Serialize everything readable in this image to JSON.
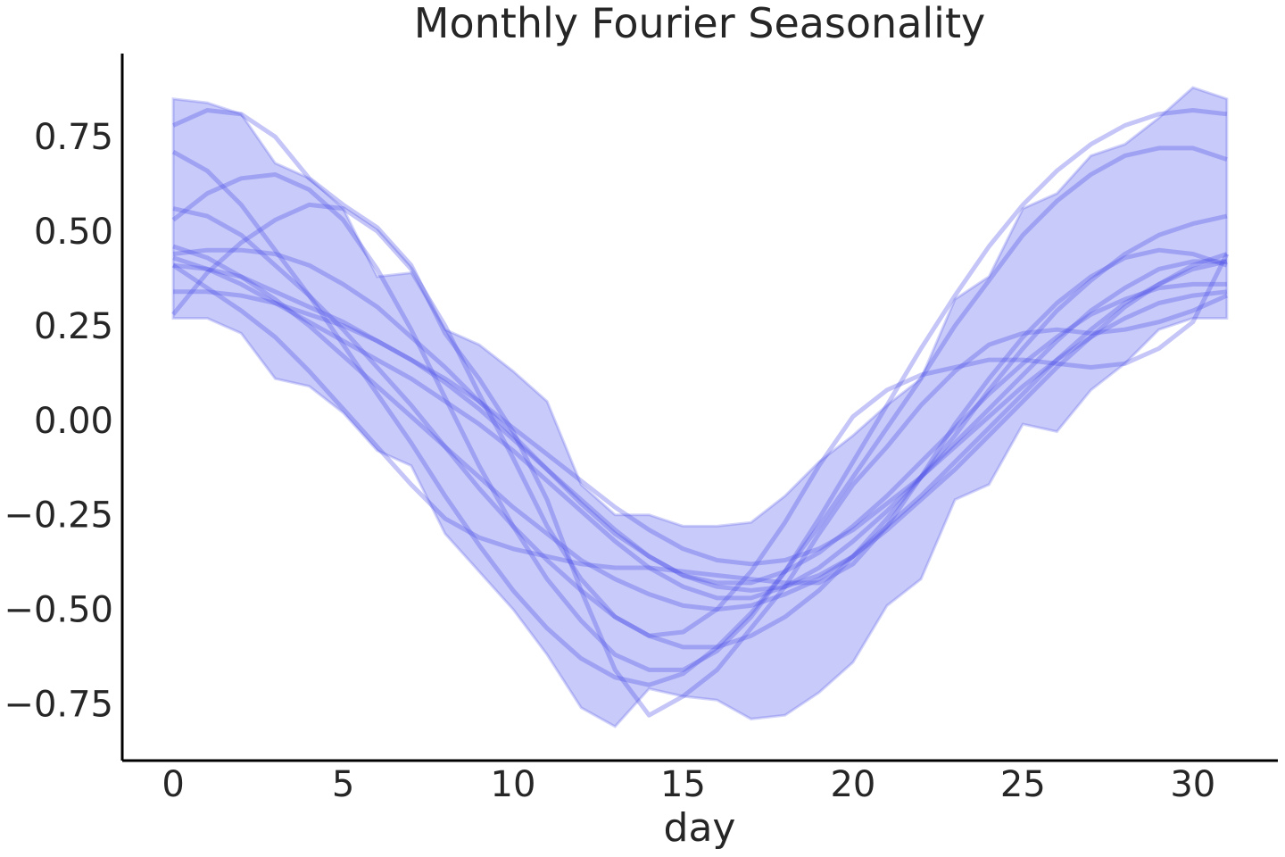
{
  "chart_data": {
    "type": "line",
    "title": "Monthly Fourier Seasonality",
    "xlabel": "day",
    "ylabel": "",
    "xlim": [
      -1.5,
      32.5
    ],
    "ylim": [
      -0.9,
      0.97
    ],
    "x_ticks": [
      0,
      5,
      10,
      15,
      20,
      25,
      30
    ],
    "y_ticks": [
      0.75,
      0.5,
      0.25,
      0.0,
      -0.25,
      -0.5,
      -0.75
    ],
    "y_tick_labels": [
      "0.75",
      "0.50",
      "0.25",
      "0.00",
      "−0.25",
      "−0.50",
      "−0.75"
    ],
    "grid": false,
    "legend": "none",
    "colors": {
      "line": "#4b4fe6",
      "band": "#b9bbf7",
      "axis": "#000000",
      "text": "#262626"
    },
    "x": [
      0,
      1,
      2,
      3,
      4,
      5,
      6,
      7,
      8,
      9,
      10,
      11,
      12,
      13,
      14,
      15,
      16,
      17,
      18,
      19,
      20,
      21,
      22,
      23,
      24,
      25,
      26,
      27,
      28,
      29,
      30,
      31
    ],
    "band": {
      "upper": [
        0.85,
        0.84,
        0.81,
        0.68,
        0.64,
        0.56,
        0.38,
        0.39,
        0.24,
        0.2,
        0.13,
        0.05,
        -0.17,
        -0.25,
        -0.25,
        -0.28,
        -0.28,
        -0.27,
        -0.2,
        -0.11,
        -0.04,
        0.04,
        0.11,
        0.32,
        0.38,
        0.56,
        0.6,
        0.7,
        0.73,
        0.8,
        0.88,
        0.85
      ],
      "lower": [
        0.27,
        0.27,
        0.23,
        0.11,
        0.09,
        0.02,
        -0.08,
        -0.12,
        -0.3,
        -0.4,
        -0.5,
        -0.62,
        -0.76,
        -0.81,
        -0.71,
        -0.73,
        -0.74,
        -0.79,
        -0.78,
        -0.72,
        -0.64,
        -0.49,
        -0.42,
        -0.21,
        -0.17,
        -0.01,
        -0.03,
        0.08,
        0.15,
        0.24,
        0.27,
        0.27
      ]
    },
    "series": [
      {
        "values": [
          0.78,
          0.82,
          0.81,
          0.75,
          0.64,
          0.57,
          0.51,
          0.41,
          0.23,
          0.11,
          -0.03,
          -0.21,
          -0.45,
          -0.66,
          -0.78,
          -0.73,
          -0.66,
          -0.55,
          -0.44,
          -0.3,
          -0.17,
          -0.07,
          0.04,
          0.13,
          0.2,
          0.23,
          0.24,
          0.23,
          0.24,
          0.26,
          0.29,
          0.33
        ]
      },
      {
        "values": [
          0.71,
          0.66,
          0.57,
          0.45,
          0.33,
          0.2,
          0.07,
          -0.06,
          -0.2,
          -0.33,
          -0.45,
          -0.55,
          -0.63,
          -0.68,
          -0.7,
          -0.67,
          -0.6,
          -0.51,
          -0.4,
          -0.28,
          -0.15,
          -0.02,
          0.11,
          0.25,
          0.37,
          0.49,
          0.58,
          0.65,
          0.7,
          0.72,
          0.72,
          0.69
        ]
      },
      {
        "values": [
          0.56,
          0.54,
          0.49,
          0.41,
          0.33,
          0.24,
          0.14,
          0.04,
          -0.07,
          -0.18,
          -0.28,
          -0.37,
          -0.45,
          -0.52,
          -0.57,
          -0.6,
          -0.6,
          -0.57,
          -0.52,
          -0.45,
          -0.36,
          -0.26,
          -0.15,
          -0.04,
          0.08,
          0.19,
          0.29,
          0.37,
          0.44,
          0.49,
          0.52,
          0.54
        ]
      },
      {
        "values": [
          0.53,
          0.6,
          0.64,
          0.65,
          0.61,
          0.53,
          0.4,
          0.24,
          0.06,
          -0.12,
          -0.28,
          -0.42,
          -0.53,
          -0.62,
          -0.66,
          -0.66,
          -0.61,
          -0.52,
          -0.4,
          -0.26,
          -0.11,
          0.04,
          0.19,
          0.33,
          0.46,
          0.57,
          0.66,
          0.73,
          0.78,
          0.81,
          0.82,
          0.81
        ]
      },
      {
        "values": [
          0.46,
          0.43,
          0.38,
          0.32,
          0.25,
          0.17,
          0.09,
          0.01,
          -0.07,
          -0.15,
          -0.23,
          -0.3,
          -0.37,
          -0.42,
          -0.46,
          -0.49,
          -0.5,
          -0.49,
          -0.46,
          -0.42,
          -0.36,
          -0.28,
          -0.2,
          -0.11,
          -0.02,
          0.07,
          0.16,
          0.24,
          0.31,
          0.36,
          0.4,
          0.42
        ]
      },
      {
        "values": [
          0.44,
          0.45,
          0.45,
          0.44,
          0.41,
          0.36,
          0.3,
          0.22,
          0.14,
          0.05,
          -0.04,
          -0.13,
          -0.22,
          -0.3,
          -0.36,
          -0.41,
          -0.44,
          -0.45,
          -0.44,
          -0.41,
          -0.36,
          -0.29,
          -0.21,
          -0.13,
          -0.04,
          0.05,
          0.14,
          0.22,
          0.3,
          0.36,
          0.41,
          0.44
        ]
      },
      {
        "values": [
          0.43,
          0.4,
          0.36,
          0.31,
          0.26,
          0.21,
          0.16,
          0.11,
          0.05,
          -0.01,
          -0.08,
          -0.16,
          -0.24,
          -0.32,
          -0.39,
          -0.44,
          -0.47,
          -0.47,
          -0.44,
          -0.39,
          -0.32,
          -0.24,
          -0.15,
          -0.06,
          0.03,
          0.12,
          0.21,
          0.29,
          0.35,
          0.4,
          0.42,
          0.42
        ]
      },
      {
        "values": [
          0.41,
          0.4,
          0.38,
          0.34,
          0.3,
          0.26,
          0.21,
          0.16,
          0.1,
          0.03,
          -0.05,
          -0.13,
          -0.21,
          -0.29,
          -0.36,
          -0.41,
          -0.43,
          -0.43,
          -0.4,
          -0.35,
          -0.28,
          -0.2,
          -0.11,
          -0.02,
          0.07,
          0.15,
          0.22,
          0.28,
          0.32,
          0.35,
          0.36,
          0.36
        ]
      },
      {
        "values": [
          0.34,
          0.34,
          0.33,
          0.31,
          0.28,
          0.25,
          0.21,
          0.16,
          0.11,
          0.05,
          -0.02,
          -0.09,
          -0.16,
          -0.23,
          -0.29,
          -0.34,
          -0.37,
          -0.38,
          -0.37,
          -0.34,
          -0.29,
          -0.22,
          -0.15,
          -0.07,
          0.01,
          0.09,
          0.16,
          0.22,
          0.27,
          0.31,
          0.33,
          0.34
        ]
      },
      {
        "values": [
          0.28,
          0.39,
          0.47,
          0.53,
          0.57,
          0.56,
          0.5,
          0.4,
          0.25,
          0.07,
          -0.1,
          -0.28,
          -0.42,
          -0.52,
          -0.57,
          -0.56,
          -0.5,
          -0.4,
          -0.27,
          -0.12,
          0.01,
          0.08,
          0.12,
          0.14,
          0.16,
          0.16,
          0.15,
          0.14,
          0.15,
          0.19,
          0.26,
          0.44
        ]
      },
      {
        "values": [
          0.41,
          0.35,
          0.29,
          0.22,
          0.13,
          0.03,
          -0.07,
          -0.17,
          -0.26,
          -0.31,
          -0.34,
          -0.36,
          -0.38,
          -0.39,
          -0.39,
          -0.4,
          -0.41,
          -0.42,
          -0.43,
          -0.43,
          -0.38,
          -0.28,
          -0.15,
          -0.01,
          0.11,
          0.22,
          0.31,
          0.38,
          0.43,
          0.45,
          0.44,
          0.41
        ]
      }
    ]
  }
}
